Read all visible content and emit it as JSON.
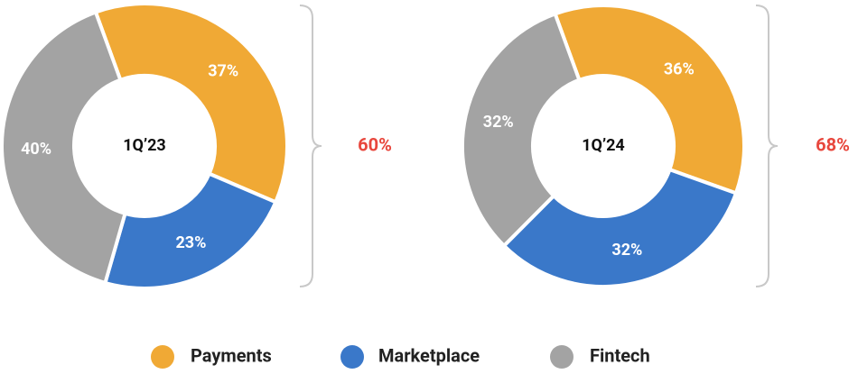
{
  "chart_data": [
    {
      "type": "pie",
      "center_label": "1Q’23",
      "categories": [
        "Payments",
        "Marketplace",
        "Fintech"
      ],
      "values": [
        37,
        23,
        40
      ],
      "value_labels": [
        "37%",
        "23%",
        "40%"
      ],
      "colors": [
        "#f0a935",
        "#3a78c9",
        "#a3a3a3"
      ],
      "annotation": "60%"
    },
    {
      "type": "pie",
      "center_label": "1Q’24",
      "categories": [
        "Payments",
        "Marketplace",
        "Fintech"
      ],
      "values": [
        36,
        32,
        32
      ],
      "value_labels": [
        "36%",
        "32%",
        "32%"
      ],
      "colors": [
        "#f0a935",
        "#3a78c9",
        "#a3a3a3"
      ],
      "annotation": "68%"
    }
  ]
}
